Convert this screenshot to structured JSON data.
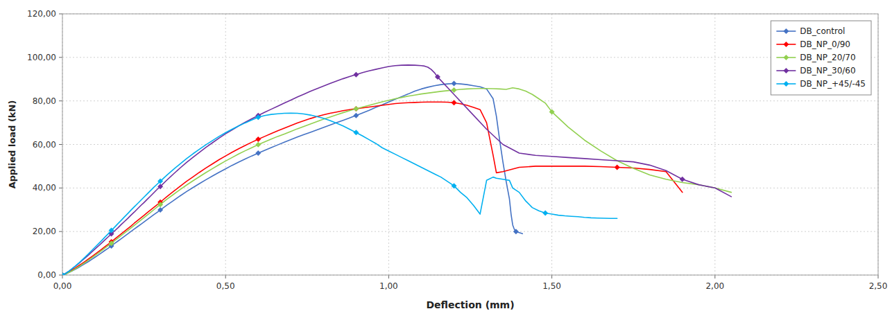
{
  "chart_data": {
    "type": "line",
    "xlabel": "Deflection (mm)",
    "ylabel": "Applied load  (kN)",
    "xlim": [
      0,
      2.5
    ],
    "ylim": [
      0,
      120
    ],
    "xticks": [
      {
        "value": 0.0,
        "label": "0,00"
      },
      {
        "value": 0.5,
        "label": "0,50"
      },
      {
        "value": 1.0,
        "label": "1,00"
      },
      {
        "value": 1.5,
        "label": "1,50"
      },
      {
        "value": 2.0,
        "label": "2,00"
      },
      {
        "value": 2.5,
        "label": "2,50"
      }
    ],
    "yticks": [
      {
        "value": 0,
        "label": "0,00"
      },
      {
        "value": 20,
        "label": "20,00"
      },
      {
        "value": 40,
        "label": "40,00"
      },
      {
        "value": 60,
        "label": "60,00"
      },
      {
        "value": 80,
        "label": "80,00"
      },
      {
        "value": 100,
        "label": "100,00"
      },
      {
        "value": 120,
        "label": "120,00"
      }
    ],
    "grid": true,
    "legend": "upper right",
    "series": [
      {
        "name": "DB_control",
        "color": "#4472C4",
        "marker": "diamond",
        "x": [
          0.0,
          0.01,
          0.02,
          0.03,
          0.04,
          0.05,
          0.06,
          0.07,
          0.08,
          0.09,
          0.1,
          0.11,
          0.12,
          0.13,
          0.14,
          0.15,
          0.16,
          0.17,
          0.18,
          0.19,
          0.2,
          0.21,
          0.22,
          0.23,
          0.24,
          0.25,
          0.26,
          0.27,
          0.28,
          0.29,
          0.3,
          0.32,
          0.34,
          0.36,
          0.38,
          0.4,
          0.42,
          0.44,
          0.46,
          0.48,
          0.5,
          0.52,
          0.54,
          0.56,
          0.58,
          0.6,
          0.62,
          0.64,
          0.66,
          0.68,
          0.7,
          0.72,
          0.74,
          0.76,
          0.78,
          0.8,
          0.82,
          0.84,
          0.86,
          0.88,
          0.9,
          0.92,
          0.94,
          0.96,
          0.98,
          1.0,
          1.02,
          1.04,
          1.06,
          1.08,
          1.1,
          1.12,
          1.14,
          1.16,
          1.18,
          1.2,
          1.22,
          1.24,
          1.26,
          1.28,
          1.3,
          1.32,
          1.33,
          1.34,
          1.35,
          1.36,
          1.37,
          1.375,
          1.38,
          1.385,
          1.39,
          1.4,
          1.41
        ],
        "values": [
          0.0,
          0.5,
          1.2,
          1.9,
          2.7,
          3.5,
          4.4,
          5.3,
          6.2,
          7.2,
          8.2,
          9.2,
          10.2,
          11.3,
          12.3,
          13.4,
          14.5,
          15.6,
          16.7,
          17.8,
          18.9,
          20.0,
          21.1,
          22.2,
          23.3,
          24.4,
          25.5,
          26.6,
          27.7,
          28.8,
          29.9,
          32.1,
          34.2,
          36.3,
          38.3,
          40.2,
          42.0,
          43.8,
          45.5,
          47.2,
          48.8,
          50.4,
          51.9,
          53.3,
          54.7,
          56.0,
          57.3,
          58.6,
          59.8,
          61.0,
          62.2,
          63.4,
          64.5,
          65.6,
          66.7,
          67.8,
          68.9,
          70.0,
          71.1,
          72.2,
          73.3,
          74.5,
          75.7,
          77.0,
          78.2,
          79.5,
          80.8,
          82.0,
          83.2,
          84.5,
          85.5,
          86.3,
          87.0,
          87.5,
          87.8,
          88.0,
          87.8,
          87.5,
          87.0,
          86.5,
          85.5,
          81.0,
          73.0,
          62.0,
          52.0,
          43.0,
          35.0,
          28.0,
          23.0,
          21.0,
          20.0,
          19.5,
          19.0
        ]
      },
      {
        "name": "DB_NP_0/90",
        "color": "#FF0000",
        "marker": "diamond",
        "x": [
          0.0,
          0.01,
          0.02,
          0.03,
          0.04,
          0.05,
          0.06,
          0.07,
          0.08,
          0.09,
          0.1,
          0.11,
          0.12,
          0.13,
          0.14,
          0.15,
          0.16,
          0.17,
          0.18,
          0.19,
          0.2,
          0.21,
          0.22,
          0.23,
          0.24,
          0.25,
          0.26,
          0.27,
          0.28,
          0.29,
          0.3,
          0.32,
          0.34,
          0.36,
          0.38,
          0.4,
          0.42,
          0.44,
          0.46,
          0.48,
          0.5,
          0.52,
          0.54,
          0.56,
          0.58,
          0.6,
          0.62,
          0.64,
          0.66,
          0.68,
          0.7,
          0.72,
          0.74,
          0.76,
          0.78,
          0.8,
          0.82,
          0.84,
          0.86,
          0.88,
          0.9,
          0.92,
          0.94,
          0.96,
          0.98,
          1.0,
          1.02,
          1.04,
          1.06,
          1.08,
          1.1,
          1.12,
          1.14,
          1.16,
          1.18,
          1.2,
          1.22,
          1.24,
          1.26,
          1.28,
          1.3,
          1.32,
          1.33,
          1.35,
          1.4,
          1.45,
          1.5,
          1.55,
          1.6,
          1.65,
          1.7,
          1.75,
          1.8,
          1.85,
          1.9
        ],
        "values": [
          0.0,
          0.7,
          1.5,
          2.4,
          3.3,
          4.3,
          5.3,
          6.3,
          7.4,
          8.5,
          9.6,
          10.7,
          11.8,
          13.0,
          14.1,
          15.3,
          16.5,
          17.7,
          18.9,
          20.1,
          21.3,
          22.5,
          23.8,
          25.0,
          26.2,
          27.4,
          28.7,
          29.9,
          31.1,
          32.3,
          33.5,
          36.0,
          38.4,
          40.7,
          43.0,
          45.1,
          47.2,
          49.2,
          51.1,
          53.0,
          54.7,
          56.4,
          58.0,
          59.5,
          61.0,
          62.4,
          63.7,
          65.0,
          66.3,
          67.5,
          68.7,
          69.9,
          70.9,
          71.9,
          72.8,
          73.6,
          74.3,
          74.9,
          75.5,
          76.0,
          76.4,
          76.8,
          77.2,
          77.6,
          78.0,
          78.4,
          78.8,
          79.0,
          79.2,
          79.3,
          79.4,
          79.5,
          79.5,
          79.5,
          79.4,
          79.2,
          78.7,
          78.0,
          77.0,
          76.0,
          70.0,
          55.0,
          47.0,
          47.5,
          49.5,
          50.0,
          50.0,
          50.0,
          50.0,
          49.8,
          49.5,
          49.2,
          48.5,
          47.5,
          38.0
        ]
      },
      {
        "name": "DB_NP_20/70",
        "color": "#92D050",
        "marker": "diamond",
        "x": [
          0.0,
          0.01,
          0.02,
          0.03,
          0.04,
          0.05,
          0.06,
          0.07,
          0.08,
          0.09,
          0.1,
          0.11,
          0.12,
          0.13,
          0.14,
          0.15,
          0.16,
          0.17,
          0.18,
          0.19,
          0.2,
          0.21,
          0.22,
          0.23,
          0.24,
          0.25,
          0.26,
          0.27,
          0.28,
          0.29,
          0.3,
          0.32,
          0.34,
          0.36,
          0.38,
          0.4,
          0.42,
          0.44,
          0.46,
          0.48,
          0.5,
          0.52,
          0.54,
          0.56,
          0.58,
          0.6,
          0.62,
          0.64,
          0.66,
          0.68,
          0.7,
          0.72,
          0.74,
          0.76,
          0.78,
          0.8,
          0.82,
          0.84,
          0.86,
          0.88,
          0.9,
          0.92,
          0.94,
          0.96,
          0.98,
          1.0,
          1.02,
          1.04,
          1.06,
          1.08,
          1.1,
          1.12,
          1.14,
          1.16,
          1.18,
          1.2,
          1.22,
          1.24,
          1.26,
          1.28,
          1.3,
          1.32,
          1.34,
          1.36,
          1.38,
          1.4,
          1.42,
          1.44,
          1.46,
          1.48,
          1.5,
          1.55,
          1.6,
          1.65,
          1.7,
          1.75,
          1.8,
          1.85,
          1.9,
          1.95,
          2.0,
          2.05
        ],
        "values": [
          0.0,
          0.5,
          1.2,
          2.0,
          2.9,
          3.8,
          4.8,
          5.8,
          6.9,
          7.9,
          9.0,
          10.1,
          11.2,
          12.4,
          13.5,
          14.6,
          15.8,
          16.9,
          18.1,
          19.3,
          20.4,
          21.6,
          22.8,
          24.0,
          25.2,
          26.4,
          27.6,
          28.8,
          30.0,
          31.2,
          32.4,
          34.8,
          37.0,
          39.2,
          41.3,
          43.3,
          45.2,
          47.1,
          48.9,
          50.7,
          52.4,
          54.0,
          55.6,
          57.1,
          58.5,
          59.9,
          61.2,
          62.5,
          63.7,
          64.8,
          66.0,
          67.2,
          68.3,
          69.4,
          70.5,
          71.6,
          72.6,
          73.6,
          74.6,
          75.5,
          76.4,
          77.2,
          78.0,
          78.8,
          79.6,
          80.3,
          81.0,
          81.6,
          82.2,
          82.7,
          83.2,
          83.6,
          84.0,
          84.4,
          84.7,
          85.0,
          85.3,
          85.5,
          85.6,
          85.7,
          85.7,
          85.6,
          85.5,
          85.3,
          86.0,
          85.5,
          84.5,
          83.0,
          81.0,
          79.0,
          75.0,
          68.0,
          62.0,
          57.0,
          52.5,
          49.0,
          46.0,
          44.0,
          42.5,
          41.5,
          40.0,
          38.0
        ]
      },
      {
        "name": "DB_NP_30/60",
        "color": "#7030A0",
        "marker": "diamond",
        "x": [
          0.0,
          0.01,
          0.02,
          0.03,
          0.04,
          0.05,
          0.06,
          0.07,
          0.08,
          0.09,
          0.1,
          0.11,
          0.12,
          0.13,
          0.14,
          0.15,
          0.16,
          0.17,
          0.18,
          0.19,
          0.2,
          0.21,
          0.22,
          0.23,
          0.24,
          0.25,
          0.26,
          0.27,
          0.28,
          0.29,
          0.3,
          0.32,
          0.34,
          0.36,
          0.38,
          0.4,
          0.42,
          0.44,
          0.46,
          0.48,
          0.5,
          0.52,
          0.54,
          0.56,
          0.58,
          0.6,
          0.62,
          0.64,
          0.66,
          0.68,
          0.7,
          0.72,
          0.74,
          0.76,
          0.78,
          0.8,
          0.82,
          0.84,
          0.86,
          0.88,
          0.9,
          0.92,
          0.94,
          0.96,
          0.98,
          1.0,
          1.02,
          1.04,
          1.06,
          1.08,
          1.1,
          1.11,
          1.12,
          1.13,
          1.14,
          1.15,
          1.2,
          1.25,
          1.3,
          1.35,
          1.4,
          1.45,
          1.5,
          1.55,
          1.6,
          1.65,
          1.7,
          1.75,
          1.8,
          1.85,
          1.9,
          1.95,
          2.0,
          2.05
        ],
        "values": [
          0.0,
          0.8,
          1.8,
          2.9,
          4.1,
          5.3,
          6.6,
          7.9,
          9.2,
          10.6,
          12.0,
          13.3,
          14.7,
          16.1,
          17.5,
          18.9,
          20.3,
          21.7,
          23.2,
          24.6,
          26.0,
          27.5,
          28.9,
          30.4,
          31.9,
          33.3,
          34.8,
          36.3,
          37.8,
          39.3,
          40.7,
          43.6,
          46.4,
          49.1,
          51.7,
          54.1,
          56.4,
          58.7,
          60.8,
          62.9,
          64.9,
          66.7,
          68.5,
          70.2,
          71.8,
          73.3,
          74.8,
          76.2,
          77.6,
          79.0,
          80.4,
          81.8,
          83.1,
          84.4,
          85.6,
          86.8,
          88.0,
          89.1,
          90.2,
          91.2,
          92.1,
          93.0,
          93.8,
          94.5,
          95.2,
          95.8,
          96.2,
          96.4,
          96.5,
          96.4,
          96.2,
          96.0,
          95.5,
          94.5,
          93.0,
          91.0,
          83.0,
          75.0,
          67.0,
          60.0,
          56.0,
          55.0,
          54.5,
          54.0,
          53.5,
          53.0,
          52.5,
          52.0,
          50.5,
          48.0,
          44.0,
          41.5,
          40.0,
          36.0
        ]
      },
      {
        "name": "DB_NP_+45/-45",
        "color": "#00B0F0",
        "marker": "diamond",
        "x": [
          0.0,
          0.01,
          0.02,
          0.03,
          0.04,
          0.05,
          0.06,
          0.07,
          0.08,
          0.09,
          0.1,
          0.11,
          0.12,
          0.13,
          0.14,
          0.15,
          0.16,
          0.17,
          0.18,
          0.19,
          0.2,
          0.21,
          0.22,
          0.23,
          0.24,
          0.25,
          0.26,
          0.27,
          0.28,
          0.29,
          0.3,
          0.32,
          0.34,
          0.36,
          0.38,
          0.4,
          0.42,
          0.44,
          0.46,
          0.48,
          0.5,
          0.52,
          0.54,
          0.56,
          0.58,
          0.6,
          0.62,
          0.64,
          0.66,
          0.68,
          0.7,
          0.72,
          0.74,
          0.76,
          0.78,
          0.8,
          0.82,
          0.84,
          0.86,
          0.88,
          0.9,
          0.92,
          0.94,
          0.96,
          0.98,
          1.0,
          1.02,
          1.04,
          1.06,
          1.08,
          1.1,
          1.12,
          1.14,
          1.16,
          1.18,
          1.2,
          1.22,
          1.24,
          1.26,
          1.28,
          1.3,
          1.32,
          1.33,
          1.35,
          1.37,
          1.38,
          1.4,
          1.42,
          1.44,
          1.46,
          1.48,
          1.5,
          1.52,
          1.54,
          1.56,
          1.58,
          1.6,
          1.62,
          1.64,
          1.66,
          1.68,
          1.7
        ],
        "values": [
          0.0,
          0.8,
          1.8,
          3.0,
          4.2,
          5.5,
          6.9,
          8.3,
          9.8,
          11.3,
          12.8,
          14.3,
          15.8,
          17.4,
          18.9,
          20.5,
          22.0,
          23.6,
          25.1,
          26.7,
          28.2,
          29.8,
          31.3,
          32.8,
          34.3,
          35.8,
          37.3,
          38.8,
          40.3,
          41.7,
          43.1,
          45.9,
          48.5,
          51.0,
          53.4,
          55.7,
          57.8,
          59.9,
          61.8,
          63.7,
          65.4,
          67.0,
          68.5,
          69.9,
          71.2,
          72.5,
          73.3,
          73.8,
          74.1,
          74.3,
          74.4,
          74.3,
          74.0,
          73.5,
          72.8,
          72.0,
          71.0,
          69.8,
          68.5,
          67.0,
          65.5,
          63.9,
          62.2,
          60.5,
          58.5,
          57.0,
          55.5,
          54.0,
          52.5,
          51.0,
          49.5,
          48.0,
          46.5,
          45.0,
          43.0,
          41.0,
          38.0,
          35.5,
          32.0,
          28.0,
          43.5,
          45.0,
          44.5,
          44.0,
          43.5,
          40.0,
          38.0,
          34.0,
          31.0,
          29.5,
          28.5,
          28.0,
          27.5,
          27.2,
          27.0,
          26.8,
          26.5,
          26.3,
          26.2,
          26.1,
          26.0,
          26.0
        ]
      }
    ]
  }
}
